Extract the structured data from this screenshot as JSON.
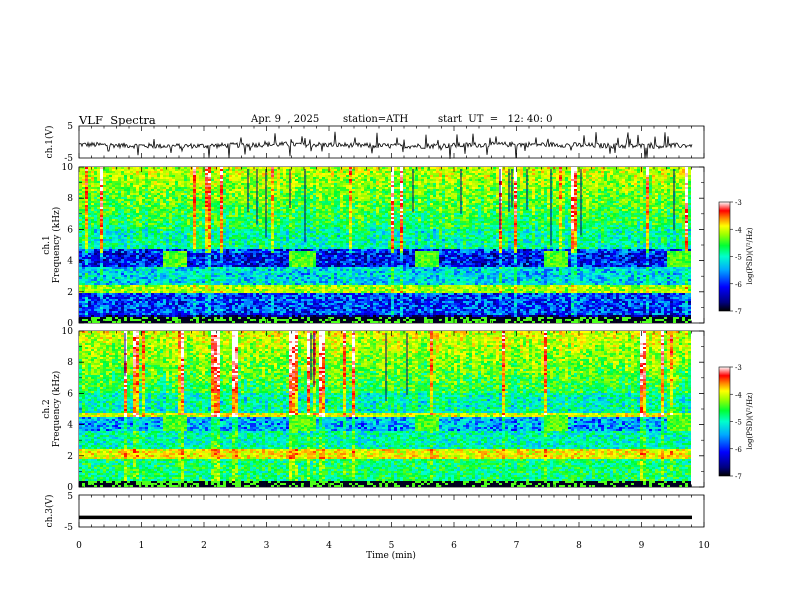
{
  "header": {
    "title": "VLF  Spectra",
    "date": "Apr. 9  , 2025",
    "station": "station=ATH",
    "start": "start  UT  =   12: 40: 0"
  },
  "colors": {
    "colormap": [
      "#000080",
      "#0000ff",
      "#00aaff",
      "#00ffcc",
      "#00ff33",
      "#99ff00",
      "#ffff00",
      "#ff8800",
      "#ff0000",
      "#ffffff"
    ]
  },
  "chart_data": [
    {
      "type": "line",
      "id": "ch1-waveform",
      "ylabel": "ch.1(V)",
      "ylim": [
        -5,
        5
      ],
      "yticks": [
        "5",
        "-5"
      ],
      "xlim": [
        0,
        10
      ],
      "description_level": "noisy waveform around -1 V"
    },
    {
      "type": "heatmap",
      "id": "ch1-spectrogram",
      "ylabel": "ch.1\nFrequency (kHz)",
      "ylabel_lines": [
        "ch.1",
        "Frequency  (kHz)"
      ],
      "ylim": [
        0,
        10
      ],
      "yticks": [
        "0",
        "2",
        "4",
        "6",
        "8",
        "10"
      ],
      "xlim": [
        0,
        10
      ],
      "bursts_min": [
        1.3,
        3.35,
        5.35,
        7.4,
        9.4
      ],
      "colorbar": {
        "label": "log(PSD)(V²/Hz)",
        "ticks": [
          "-3",
          "-4",
          "-5",
          "-6",
          "-7"
        ],
        "range": [
          -7,
          -3
        ]
      }
    },
    {
      "type": "heatmap",
      "id": "ch2-spectrogram",
      "ylabel": "ch.2\nFrequency (kHz)",
      "ylabel_lines": [
        "ch.2",
        "Frequency  (kHz)"
      ],
      "ylim": [
        0,
        10
      ],
      "yticks": [
        "0",
        "2",
        "4",
        "6",
        "8",
        "10"
      ],
      "xlim": [
        0,
        10
      ],
      "bursts_min": [
        1.3,
        3.35,
        5.35,
        7.4,
        9.4
      ],
      "colorbar": {
        "label": "log(PSD)(V²/Hz)",
        "ticks": [
          "-3",
          "-4",
          "-5",
          "-6",
          "-7"
        ],
        "range": [
          -7,
          -3
        ]
      }
    },
    {
      "type": "line",
      "id": "ch3-waveform",
      "ylabel": "ch.3(V)",
      "ylim": [
        -5,
        5
      ],
      "yticks": [
        "5",
        "-5"
      ],
      "xlim": [
        0,
        10
      ],
      "xlabel": "Time  (min)",
      "xticks": [
        "0",
        "1",
        "2",
        "3",
        "4",
        "5",
        "6",
        "7",
        "8",
        "9",
        "10"
      ],
      "level": -2
    }
  ]
}
